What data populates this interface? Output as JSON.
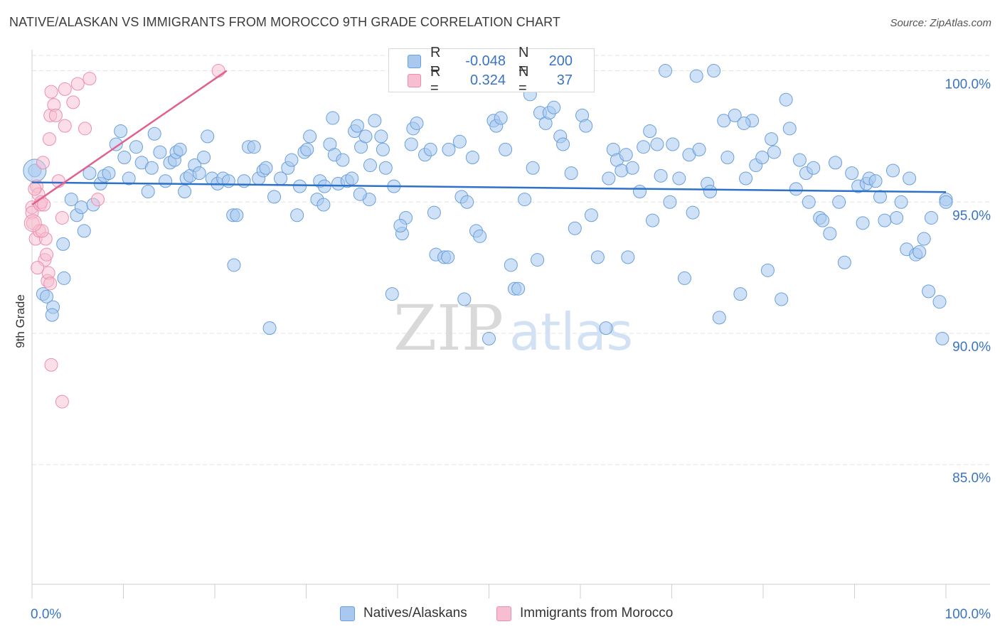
{
  "title": "NATIVE/ALASKAN VS IMMIGRANTS FROM MOROCCO 9TH GRADE CORRELATION CHART",
  "source": "Source: ZipAtlas.com",
  "watermark": {
    "zip": "ZIP",
    "atlas": "atlas"
  },
  "legend": {
    "series1": {
      "r_label": "R =",
      "r_value": "-0.048",
      "n_label": "N =",
      "n_value": "200"
    },
    "series2": {
      "r_label": "R =",
      "r_value": "0.324",
      "n_label": "N =",
      "n_value": "37"
    }
  },
  "bottom_legend": {
    "series1": "Natives/Alaskans",
    "series2": "Immigrants from Morocco"
  },
  "colors": {
    "blue_fill": "#a8c8ef",
    "blue_stroke": "#6a9fdc",
    "blue_line": "#2d72c8",
    "pink_fill": "#f7bdd0",
    "pink_stroke": "#ec8fae",
    "pink_line": "#e0608e",
    "axis_text": "#3a74c4",
    "grid": "#e3e3e3"
  },
  "chart_data": {
    "type": "scatter",
    "title": "NATIVE/ALASKAN VS IMMIGRANTS FROM MOROCCO 9TH GRADE CORRELATION CHART",
    "xlabel": "",
    "ylabel": "9th Grade",
    "xlim": [
      0,
      100
    ],
    "ylim": [
      80.5,
      100.8
    ],
    "x_tick_labels": [
      "0.0%",
      "100.0%"
    ],
    "y_ticks": [
      100,
      95,
      90,
      85
    ],
    "y_tick_labels": [
      "100.0%",
      "95.0%",
      "90.0%",
      "85.0%"
    ],
    "grid": true,
    "legend_position": "top-center",
    "series": [
      {
        "name": "Natives/Alaskans",
        "color": "#a8c8ef",
        "r": -0.048,
        "n": 200,
        "trend": {
          "x": [
            0,
            100
          ],
          "y": [
            95.75,
            95.38
          ]
        },
        "points": [
          [
            0.3,
            96.2
          ],
          [
            1.2,
            91.5
          ],
          [
            1.6,
            91.4
          ],
          [
            2.3,
            91.0
          ],
          [
            2.2,
            90.7
          ],
          [
            3.5,
            92.1
          ],
          [
            3.4,
            93.4
          ],
          [
            4.3,
            95.1
          ],
          [
            4.9,
            94.5
          ],
          [
            5.4,
            94.8
          ],
          [
            5.7,
            93.9
          ],
          [
            6.3,
            96.1
          ],
          [
            6.7,
            94.9
          ],
          [
            7.5,
            95.7
          ],
          [
            7.9,
            96.0
          ],
          [
            8.4,
            96.1
          ],
          [
            9.2,
            97.2
          ],
          [
            9.7,
            97.7
          ],
          [
            10.1,
            96.7
          ],
          [
            10.6,
            95.9
          ],
          [
            11.4,
            97.1
          ],
          [
            12.0,
            96.5
          ],
          [
            12.7,
            95.4
          ],
          [
            13.1,
            96.3
          ],
          [
            13.4,
            97.6
          ],
          [
            14.0,
            96.9
          ],
          [
            14.6,
            95.8
          ],
          [
            15.1,
            96.5
          ],
          [
            15.6,
            96.6
          ],
          [
            15.8,
            96.9
          ],
          [
            16.2,
            97.0
          ],
          [
            16.7,
            95.4
          ],
          [
            16.9,
            95.9
          ],
          [
            17.3,
            96.0
          ],
          [
            17.8,
            96.4
          ],
          [
            18.3,
            96.1
          ],
          [
            18.8,
            96.7
          ],
          [
            19.2,
            97.5
          ],
          [
            19.7,
            95.9
          ],
          [
            20.3,
            95.7
          ],
          [
            20.9,
            95.9
          ],
          [
            21.5,
            95.8
          ],
          [
            22.0,
            94.5
          ],
          [
            22.4,
            94.5
          ],
          [
            23.2,
            95.8
          ],
          [
            23.7,
            97.1
          ],
          [
            24.3,
            97.1
          ],
          [
            24.8,
            95.9
          ],
          [
            25.3,
            96.2
          ],
          [
            25.6,
            96.3
          ],
          [
            26.5,
            95.2
          ],
          [
            27.2,
            95.9
          ],
          [
            28.0,
            96.3
          ],
          [
            28.4,
            96.6
          ],
          [
            29.0,
            94.5
          ],
          [
            29.3,
            95.6
          ],
          [
            29.8,
            96.9
          ],
          [
            30.1,
            97.0
          ],
          [
            30.4,
            97.5
          ],
          [
            31.2,
            95.1
          ],
          [
            31.5,
            95.8
          ],
          [
            32.0,
            95.6
          ],
          [
            31.9,
            94.9
          ],
          [
            32.6,
            97.2
          ],
          [
            32.9,
            98.2
          ],
          [
            33.1,
            96.8
          ],
          [
            33.5,
            95.7
          ],
          [
            34.0,
            96.6
          ],
          [
            34.5,
            95.8
          ],
          [
            35.0,
            95.9
          ],
          [
            35.3,
            97.7
          ],
          [
            35.6,
            97.9
          ],
          [
            36.0,
            97.1
          ],
          [
            36.5,
            97.5
          ],
          [
            36.9,
            95.1
          ],
          [
            37.0,
            96.4
          ],
          [
            37.5,
            98.1
          ],
          [
            38.2,
            97.5
          ],
          [
            38.4,
            97.0
          ],
          [
            38.7,
            96.3
          ],
          [
            39.4,
            91.5
          ],
          [
            39.6,
            95.6
          ],
          [
            40.5,
            93.8
          ],
          [
            40.9,
            94.4
          ],
          [
            41.5,
            97.2
          ],
          [
            41.7,
            97.8
          ],
          [
            42.1,
            98.0
          ],
          [
            43.0,
            96.8
          ],
          [
            43.6,
            97.0
          ],
          [
            44.0,
            94.6
          ],
          [
            44.2,
            93.0
          ],
          [
            45.1,
            92.9
          ],
          [
            45.5,
            92.9
          ],
          [
            45.6,
            97.0
          ],
          [
            46.8,
            97.3
          ],
          [
            47.0,
            95.2
          ],
          [
            47.3,
            91.3
          ],
          [
            47.6,
            95.0
          ],
          [
            48.2,
            96.7
          ],
          [
            48.6,
            93.9
          ],
          [
            49.0,
            93.7
          ],
          [
            50.0,
            89.8
          ],
          [
            50.5,
            98.1
          ],
          [
            50.8,
            97.9
          ],
          [
            51.3,
            98.2
          ],
          [
            51.8,
            97.0
          ],
          [
            52.4,
            92.6
          ],
          [
            52.8,
            91.7
          ],
          [
            53.2,
            91.7
          ],
          [
            53.9,
            95.1
          ],
          [
            54.8,
            96.3
          ],
          [
            55.3,
            92.8
          ],
          [
            55.6,
            98.4
          ],
          [
            56.2,
            98.0
          ],
          [
            56.6,
            98.4
          ],
          [
            57.1,
            98.6
          ],
          [
            57.8,
            97.5
          ],
          [
            58.1,
            97.2
          ],
          [
            59.0,
            96.1
          ],
          [
            59.4,
            94.0
          ],
          [
            60.2,
            98.3
          ],
          [
            60.6,
            97.9
          ],
          [
            61.2,
            94.5
          ],
          [
            61.9,
            92.9
          ],
          [
            62.8,
            90.2
          ],
          [
            63.1,
            95.9
          ],
          [
            63.6,
            97.0
          ],
          [
            64.0,
            96.6
          ],
          [
            64.5,
            96.2
          ],
          [
            65.0,
            96.8
          ],
          [
            65.2,
            92.9
          ],
          [
            65.7,
            96.3
          ],
          [
            66.5,
            95.4
          ],
          [
            66.9,
            97.1
          ],
          [
            67.6,
            97.7
          ],
          [
            67.9,
            94.3
          ],
          [
            68.4,
            97.2
          ],
          [
            69.3,
            100.0
          ],
          [
            69.8,
            95.0
          ],
          [
            70.1,
            97.2
          ],
          [
            70.8,
            95.9
          ],
          [
            71.4,
            92.1
          ],
          [
            71.9,
            96.8
          ],
          [
            72.3,
            94.6
          ],
          [
            73.0,
            97.0
          ],
          [
            73.9,
            95.7
          ],
          [
            74.2,
            95.4
          ],
          [
            75.2,
            90.6
          ],
          [
            75.7,
            98.1
          ],
          [
            76.1,
            96.7
          ],
          [
            76.9,
            98.3
          ],
          [
            77.5,
            91.5
          ],
          [
            78.1,
            95.9
          ],
          [
            78.8,
            98.1
          ],
          [
            79.2,
            96.4
          ],
          [
            79.9,
            96.7
          ],
          [
            80.5,
            92.4
          ],
          [
            80.9,
            97.4
          ],
          [
            81.2,
            96.9
          ],
          [
            82.0,
            91.3
          ],
          [
            82.5,
            98.9
          ],
          [
            82.9,
            97.8
          ],
          [
            83.6,
            95.5
          ],
          [
            84.0,
            96.6
          ],
          [
            84.7,
            96.1
          ],
          [
            85.0,
            95.0
          ],
          [
            85.5,
            96.3
          ],
          [
            86.2,
            94.4
          ],
          [
            86.5,
            94.3
          ],
          [
            87.3,
            93.8
          ],
          [
            87.9,
            96.5
          ],
          [
            88.3,
            95.0
          ],
          [
            88.9,
            92.7
          ],
          [
            89.7,
            96.1
          ],
          [
            90.4,
            95.6
          ],
          [
            90.9,
            94.2
          ],
          [
            91.3,
            95.7
          ],
          [
            91.6,
            95.9
          ],
          [
            92.3,
            95.8
          ],
          [
            92.8,
            95.2
          ],
          [
            93.3,
            94.3
          ],
          [
            94.2,
            96.2
          ],
          [
            94.6,
            94.4
          ],
          [
            95.1,
            95.0
          ],
          [
            95.7,
            93.2
          ],
          [
            96.0,
            95.9
          ],
          [
            96.7,
            93.0
          ],
          [
            97.1,
            93.1
          ],
          [
            97.6,
            93.6
          ],
          [
            98.4,
            94.4
          ],
          [
            98.1,
            91.6
          ],
          [
            99.3,
            91.2
          ],
          [
            99.6,
            89.8
          ],
          [
            100.0,
            95.1
          ],
          [
            100.0,
            95.0
          ],
          [
            22.1,
            92.6
          ],
          [
            26.0,
            90.2
          ],
          [
            35.9,
            95.3
          ],
          [
            40.3,
            94.1
          ],
          [
            54.5,
            99.1
          ],
          [
            59.8,
            100.0
          ],
          [
            72.7,
            99.8
          ],
          [
            74.6,
            100.0
          ],
          [
            68.8,
            96.0
          ],
          [
            77.9,
            98.0
          ]
        ]
      },
      {
        "name": "Immigrants from Morocco",
        "color": "#f7bdd0",
        "r": 0.324,
        "n": 37,
        "trend": {
          "x": [
            0,
            21.3
          ],
          "y": [
            94.9,
            100.0
          ]
        },
        "points": [
          [
            0.0,
            94.8
          ],
          [
            0.0,
            94.6
          ],
          [
            0.1,
            94.2
          ],
          [
            0.4,
            93.6
          ],
          [
            0.5,
            95.6
          ],
          [
            0.7,
            95.3
          ],
          [
            0.8,
            93.9
          ],
          [
            0.9,
            94.9
          ],
          [
            1.0,
            95.0
          ],
          [
            1.2,
            96.5
          ],
          [
            1.3,
            94.9
          ],
          [
            1.4,
            92.8
          ],
          [
            1.5,
            93.6
          ],
          [
            1.6,
            93.0
          ],
          [
            1.7,
            92.0
          ],
          [
            1.8,
            92.3
          ],
          [
            1.9,
            97.4
          ],
          [
            2.0,
            98.3
          ],
          [
            2.1,
            99.2
          ],
          [
            2.4,
            98.7
          ],
          [
            2.6,
            98.3
          ],
          [
            2.9,
            95.8
          ],
          [
            3.3,
            94.4
          ],
          [
            3.6,
            97.9
          ],
          [
            3.6,
            99.3
          ],
          [
            4.5,
            98.8
          ],
          [
            5.0,
            99.5
          ],
          [
            5.8,
            97.8
          ],
          [
            6.3,
            99.7
          ],
          [
            7.2,
            95.1
          ],
          [
            2.1,
            88.8
          ],
          [
            3.3,
            87.4
          ],
          [
            0.6,
            92.5
          ],
          [
            0.3,
            95.5
          ],
          [
            1.1,
            93.9
          ],
          [
            2.0,
            91.9
          ],
          [
            20.4,
            100.0
          ]
        ]
      }
    ]
  }
}
